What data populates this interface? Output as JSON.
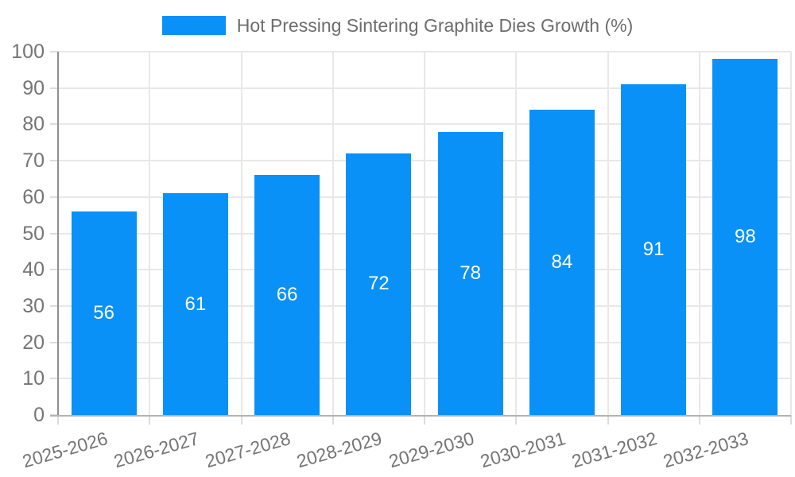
{
  "chart_data": {
    "type": "bar",
    "title": "Hot Pressing Sintering Graphite Dies Growth (%)",
    "categories": [
      "2025-2026",
      "2026-2027",
      "2027-2028",
      "2028-2029",
      "2029-2030",
      "2030-2031",
      "2031-2032",
      "2032-2033"
    ],
    "values": [
      56,
      61,
      66,
      72,
      78,
      84,
      91,
      98
    ],
    "value_labels": [
      "56",
      "61",
      "66",
      "72",
      "78",
      "84",
      "91",
      "98"
    ],
    "xlabel": "",
    "ylabel": "",
    "ylim": [
      0,
      100
    ],
    "y_ticks": [
      0,
      10,
      20,
      30,
      40,
      50,
      60,
      70,
      80,
      90,
      100
    ],
    "grid": true,
    "legend_position": "top-center",
    "x_label_rotation_deg": -16,
    "colors": {
      "bar": "#0991f8",
      "value_label": "#ffffff",
      "axis_text": "#757575",
      "title_text": "#6d6d6d",
      "gridline": "#e8e8e8",
      "tick": "#dcdcdc",
      "axis_line_x": "#b3b3b3",
      "axis_line_y": "#8f8f8f",
      "background": "#ffffff"
    }
  }
}
